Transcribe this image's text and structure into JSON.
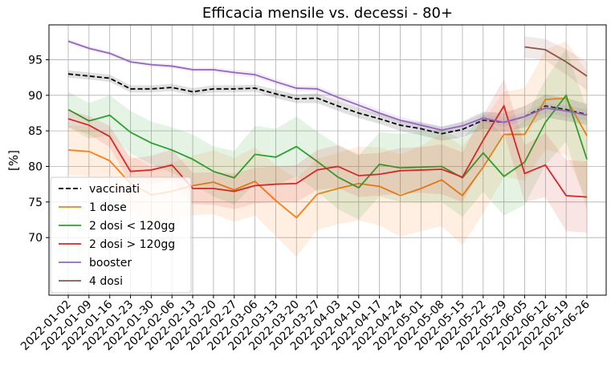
{
  "chart_data": {
    "type": "line",
    "title": "Efficacia mensile vs. decessi - 80+",
    "ylabel": "[%]",
    "categories": [
      "2022-01-02",
      "2022-01-09",
      "2022-01-16",
      "2022-01-23",
      "2022-01-30",
      "2022-02-06",
      "2022-02-13",
      "2022-02-20",
      "2022-02-27",
      "2022-03-06",
      "2022-03-13",
      "2022-03-20",
      "2022-03-27",
      "2022-04-03",
      "2022-04-10",
      "2022-04-17",
      "2022-04-24",
      "2022-05-01",
      "2022-05-08",
      "2022-05-15",
      "2022-05-22",
      "2022-05-29",
      "2022-06-05",
      "2022-06-12",
      "2022-06-19",
      "2022-06-26"
    ],
    "ylim": [
      61.9,
      99.9
    ],
    "yticks": [
      70,
      75,
      80,
      85,
      90,
      95
    ],
    "grid": true,
    "legend": "lower left",
    "series": [
      {
        "name": "vaccinati",
        "color": "#000000",
        "linestyle": "dashed",
        "values": [
          93.0,
          92.7,
          92.4,
          90.9,
          90.9,
          91.1,
          90.5,
          90.9,
          90.9,
          91.0,
          90.2,
          89.5,
          89.6,
          88.5,
          87.5,
          86.7,
          85.8,
          85.3,
          84.6,
          85.2,
          86.5,
          86.2,
          87.0,
          88.5,
          88.0,
          87.3
        ],
        "ci": [
          0.5,
          0.5,
          0.5,
          0.5,
          0.5,
          0.5,
          0.5,
          0.5,
          0.5,
          0.5,
          0.6,
          0.6,
          0.7,
          0.7,
          0.7,
          0.7,
          0.8,
          0.9,
          1.0,
          1.1,
          1.2,
          1.3,
          1.5,
          1.6,
          1.6,
          1.5
        ]
      },
      {
        "name": "1 dose",
        "color": "#ff7f0e",
        "linestyle": "solid",
        "values": [
          82.3,
          82.1,
          80.8,
          77.6,
          76.0,
          76.5,
          77.3,
          77.8,
          76.7,
          77.9,
          75.2,
          72.8,
          76.1,
          76.9,
          77.6,
          77.2,
          75.9,
          76.9,
          78.1,
          75.9,
          79.9,
          84.5,
          84.5,
          89.4,
          89.6,
          84.3
        ],
        "ci": [
          3.5,
          3.5,
          3.8,
          4.0,
          4.0,
          4.0,
          4.2,
          4.5,
          4.5,
          4.8,
          5.0,
          5.5,
          5.0,
          5.0,
          5.2,
          5.5,
          5.8,
          6.0,
          6.5,
          7.0,
          6.5,
          6.0,
          6.5,
          7.0,
          8.0,
          9.0
        ]
      },
      {
        "name": "2 dosi < 120gg",
        "color": "#2ca02c",
        "linestyle": "solid",
        "values": [
          88.0,
          86.4,
          87.2,
          84.8,
          83.3,
          82.3,
          81.0,
          79.3,
          78.4,
          81.7,
          81.3,
          82.8,
          80.7,
          78.5,
          77.0,
          80.3,
          79.8,
          79.9,
          80.0,
          78.4,
          81.9,
          78.6,
          80.6,
          86.2,
          90.0,
          81.0
        ],
        "ci": [
          2.5,
          2.5,
          2.8,
          3.0,
          3.0,
          3.2,
          3.5,
          3.5,
          3.8,
          4.0,
          4.0,
          4.2,
          4.2,
          4.5,
          4.5,
          4.5,
          4.8,
          5.0,
          5.0,
          5.5,
          5.5,
          5.5,
          6.0,
          6.0,
          6.5,
          7.0
        ]
      },
      {
        "name": "2 dosi > 120gg",
        "color": "#d62728",
        "linestyle": "solid",
        "values": [
          86.7,
          85.8,
          84.2,
          79.3,
          79.5,
          80.2,
          76.9,
          76.9,
          76.5,
          77.3,
          77.5,
          77.6,
          79.5,
          80.0,
          78.7,
          78.9,
          79.4,
          79.5,
          79.6,
          78.5,
          83.7,
          88.5,
          79.0,
          80.2,
          75.9,
          75.7
        ],
        "ci": [
          1.2,
          1.3,
          1.5,
          1.8,
          2.0,
          2.2,
          2.2,
          2.3,
          2.5,
          2.5,
          2.5,
          2.6,
          2.8,
          3.0,
          3.0,
          3.0,
          3.2,
          3.2,
          3.5,
          3.5,
          3.5,
          3.8,
          4.0,
          4.5,
          5.0,
          5.0
        ]
      },
      {
        "name": "booster",
        "color": "#9467bd",
        "linestyle": "solid",
        "values": [
          97.6,
          96.6,
          95.9,
          94.7,
          94.3,
          94.1,
          93.6,
          93.6,
          93.2,
          92.9,
          91.9,
          91.0,
          90.9,
          89.7,
          88.6,
          87.5,
          86.5,
          85.8,
          85.1,
          85.7,
          86.8,
          86.2,
          87.0,
          88.2,
          87.8,
          87.2
        ],
        "ci": [
          0.3,
          0.3,
          0.3,
          0.3,
          0.3,
          0.3,
          0.3,
          0.3,
          0.4,
          0.4,
          0.4,
          0.4,
          0.4,
          0.5,
          0.5,
          0.5,
          0.5,
          0.5,
          0.5,
          0.5,
          0.6,
          0.6,
          0.6,
          0.7,
          0.8,
          0.8
        ]
      },
      {
        "name": "4 dosi",
        "color": "#8c564b",
        "linestyle": "solid",
        "values": [
          null,
          null,
          null,
          null,
          null,
          null,
          null,
          null,
          null,
          null,
          null,
          null,
          null,
          null,
          null,
          null,
          null,
          null,
          null,
          null,
          null,
          null,
          96.8,
          96.4,
          94.7,
          92.7
        ],
        "ci": [
          null,
          null,
          null,
          null,
          null,
          null,
          null,
          null,
          null,
          null,
          null,
          null,
          null,
          null,
          null,
          null,
          null,
          null,
          null,
          null,
          null,
          null,
          1.5,
          1.5,
          1.8,
          2.0
        ]
      }
    ]
  }
}
